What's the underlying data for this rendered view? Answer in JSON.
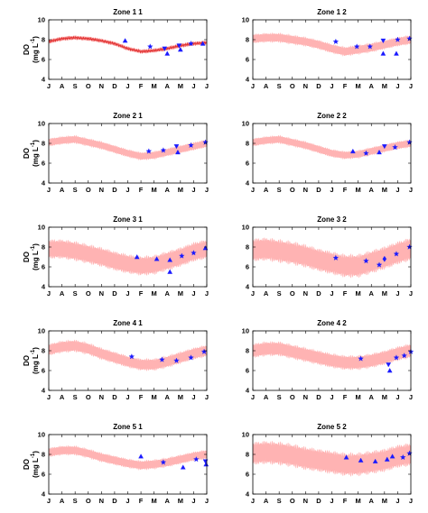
{
  "colors": {
    "band": "#ffb3b3",
    "modeled_line": "#e03030",
    "observed_marker": "#1a1aff",
    "observed_alt": "#f5a060",
    "axis": "#000000"
  },
  "shared": {
    "ylabel_line1": "DO",
    "ylabel_line2": "(mg L",
    "ylabel_sup": "-1",
    "ylabel_close": ")",
    "yticks": [
      "4",
      "6",
      "8",
      "10"
    ],
    "xticks": [
      "J",
      "A",
      "S",
      "O",
      "N",
      "D",
      "J",
      "F",
      "M",
      "A",
      "M",
      "J",
      "J"
    ]
  },
  "chart_data": [
    {
      "type": "area",
      "title": "Zone 1 1",
      "xlabel": "",
      "ylabel": "DO (mg L-1)",
      "ylim": [
        4,
        10
      ],
      "band_mean": [
        7.8,
        8.1,
        8.2,
        8.1,
        7.9,
        7.6,
        7.1,
        6.8,
        6.9,
        7.1,
        7.4,
        7.6,
        7.7
      ],
      "band_halfwidth": 0.15,
      "modeled_line_visible": true,
      "observed": [
        {
          "x": 5.8,
          "y": 7.9,
          "marker": "^"
        },
        {
          "x": 7.7,
          "y": 7.3,
          "marker": "*"
        },
        {
          "x": 8.8,
          "y": 7.1,
          "marker": "v"
        },
        {
          "x": 9.0,
          "y": 6.6,
          "marker": "^"
        },
        {
          "x": 9.9,
          "y": 7.4,
          "marker": "v"
        },
        {
          "x": 10.0,
          "y": 7.0,
          "marker": "^"
        },
        {
          "x": 10.8,
          "y": 7.6,
          "marker": "*"
        },
        {
          "x": 11.7,
          "y": 7.6,
          "marker": "^"
        }
      ]
    },
    {
      "type": "area",
      "title": "Zone 1 2",
      "xlabel": "",
      "ylabel": "",
      "ylim": [
        4,
        10
      ],
      "band_mean": [
        8.1,
        8.2,
        8.2,
        8.0,
        7.8,
        7.5,
        7.1,
        6.8,
        7.0,
        7.2,
        7.5,
        7.8,
        8.0
      ],
      "band_halfwidth": 0.35,
      "modeled_line_visible": false,
      "observed": [
        {
          "x": 6.3,
          "y": 7.8,
          "marker": "*"
        },
        {
          "x": 7.9,
          "y": 7.3,
          "marker": "*"
        },
        {
          "x": 8.9,
          "y": 7.3,
          "marker": "*"
        },
        {
          "x": 9.9,
          "y": 7.9,
          "marker": "v"
        },
        {
          "x": 9.9,
          "y": 6.6,
          "marker": "^"
        },
        {
          "x": 10.9,
          "y": 6.6,
          "marker": "^"
        },
        {
          "x": 11.0,
          "y": 8.0,
          "marker": "*"
        },
        {
          "x": 11.9,
          "y": 8.1,
          "marker": "*"
        }
      ]
    },
    {
      "type": "area",
      "title": "Zone 2 1",
      "xlabel": "",
      "ylabel": "DO (mg L-1)",
      "ylim": [
        4,
        10
      ],
      "band_mean": [
        8.1,
        8.3,
        8.4,
        8.1,
        7.8,
        7.4,
        7.0,
        6.7,
        6.8,
        7.1,
        7.4,
        7.7,
        8.0
      ],
      "band_halfwidth": 0.3,
      "modeled_line_visible": false,
      "observed": [
        {
          "x": 7.6,
          "y": 7.2,
          "marker": "*"
        },
        {
          "x": 8.7,
          "y": 7.3,
          "marker": "*"
        },
        {
          "x": 9.7,
          "y": 7.7,
          "marker": "v"
        },
        {
          "x": 9.8,
          "y": 7.1,
          "marker": "^"
        },
        {
          "x": 10.8,
          "y": 7.8,
          "marker": "*"
        },
        {
          "x": 11.9,
          "y": 8.1,
          "marker": "*"
        }
      ]
    },
    {
      "type": "area",
      "title": "Zone 2 2",
      "xlabel": "",
      "ylabel": "",
      "ylim": [
        4,
        10
      ],
      "band_mean": [
        8.1,
        8.3,
        8.4,
        8.1,
        7.8,
        7.4,
        7.0,
        6.8,
        6.9,
        7.2,
        7.5,
        7.8,
        8.0
      ],
      "band_halfwidth": 0.3,
      "modeled_line_visible": false,
      "observed": [
        {
          "x": 7.6,
          "y": 7.2,
          "marker": "^"
        },
        {
          "x": 8.6,
          "y": 7.0,
          "marker": "*"
        },
        {
          "x": 9.6,
          "y": 7.1,
          "marker": "^"
        },
        {
          "x": 10.0,
          "y": 7.7,
          "marker": "v"
        },
        {
          "x": 10.8,
          "y": 7.6,
          "marker": "*"
        },
        {
          "x": 11.9,
          "y": 8.1,
          "marker": "*"
        }
      ]
    },
    {
      "type": "area",
      "title": "Zone 3 1",
      "xlabel": "",
      "ylabel": "DO (mg L-1)",
      "ylim": [
        4,
        10
      ],
      "band_mean": [
        7.8,
        7.8,
        7.6,
        7.3,
        7.0,
        6.6,
        6.3,
        6.1,
        6.2,
        6.6,
        7.0,
        7.5,
        7.8
      ],
      "band_halfwidth": 0.75,
      "modeled_line_visible": false,
      "observed": [
        {
          "x": 6.7,
          "y": 7.0,
          "marker": "^"
        },
        {
          "x": 8.2,
          "y": 6.8,
          "marker": "^"
        },
        {
          "x": 9.2,
          "y": 6.7,
          "marker": "^"
        },
        {
          "x": 9.2,
          "y": 5.5,
          "marker": "^"
        },
        {
          "x": 10.1,
          "y": 7.1,
          "marker": "*"
        },
        {
          "x": 11.0,
          "y": 7.4,
          "marker": "*"
        },
        {
          "x": 11.9,
          "y": 7.9,
          "marker": "^"
        }
      ]
    },
    {
      "type": "area",
      "title": "Zone 3 2",
      "xlabel": "",
      "ylabel": "",
      "ylim": [
        4,
        10
      ],
      "band_mean": [
        7.7,
        7.8,
        7.6,
        7.4,
        7.1,
        6.7,
        6.4,
        6.1,
        6.1,
        6.5,
        6.9,
        7.4,
        7.8
      ],
      "band_halfwidth": 0.9,
      "modeled_line_visible": false,
      "observed": [
        {
          "x": 6.3,
          "y": 6.9,
          "marker": "*"
        },
        {
          "x": 8.6,
          "y": 6.6,
          "marker": "*"
        },
        {
          "x": 9.6,
          "y": 6.2,
          "marker": "*"
        },
        {
          "x": 10.0,
          "y": 6.8,
          "marker": "d"
        },
        {
          "x": 10.9,
          "y": 7.3,
          "marker": "*"
        },
        {
          "x": 11.9,
          "y": 8.0,
          "marker": "*"
        }
      ]
    },
    {
      "type": "area",
      "title": "Zone 4 1",
      "xlabel": "",
      "ylabel": "DO (mg L-1)",
      "ylim": [
        4,
        10
      ],
      "band_mean": [
        8.1,
        8.4,
        8.5,
        8.2,
        7.7,
        7.3,
        6.9,
        6.6,
        6.6,
        6.9,
        7.3,
        7.7,
        8.0
      ],
      "band_halfwidth": 0.45,
      "modeled_line_visible": false,
      "observed": [
        {
          "x": 6.3,
          "y": 7.4,
          "marker": "*"
        },
        {
          "x": 8.6,
          "y": 7.1,
          "marker": "*"
        },
        {
          "x": 9.7,
          "y": 7.0,
          "marker": "*"
        },
        {
          "x": 10.8,
          "y": 7.3,
          "marker": "*"
        },
        {
          "x": 11.8,
          "y": 7.9,
          "marker": "*"
        }
      ]
    },
    {
      "type": "area",
      "title": "Zone 4 2",
      "xlabel": "",
      "ylabel": "",
      "ylim": [
        4,
        10
      ],
      "band_mean": [
        8.0,
        8.2,
        8.2,
        7.9,
        7.6,
        7.3,
        7.0,
        6.8,
        6.8,
        7.0,
        7.3,
        7.7,
        8.0
      ],
      "band_halfwidth": 0.55,
      "modeled_line_visible": false,
      "observed": [
        {
          "x": 8.2,
          "y": 7.2,
          "marker": "*"
        },
        {
          "x": 10.3,
          "y": 6.6,
          "marker": "v"
        },
        {
          "x": 10.4,
          "y": 6.0,
          "marker": "^"
        },
        {
          "x": 10.9,
          "y": 7.3,
          "marker": "*"
        },
        {
          "x": 11.5,
          "y": 7.5,
          "marker": "*"
        },
        {
          "x": 12.0,
          "y": 7.9,
          "marker": "*"
        }
      ]
    },
    {
      "type": "area",
      "title": "Zone 5 1",
      "xlabel": "",
      "ylabel": "DO (mg L-1)",
      "ylim": [
        4,
        10
      ],
      "band_mean": [
        8.2,
        8.4,
        8.4,
        8.1,
        7.7,
        7.4,
        7.1,
        6.9,
        7.0,
        7.2,
        7.5,
        7.8,
        8.0
      ],
      "band_halfwidth": 0.35,
      "modeled_line_visible": false,
      "observed": [
        {
          "x": 7.0,
          "y": 7.8,
          "marker": "^"
        },
        {
          "x": 8.7,
          "y": 7.2,
          "marker": "*"
        },
        {
          "x": 10.2,
          "y": 6.7,
          "marker": "^"
        },
        {
          "x": 11.2,
          "y": 7.5,
          "marker": "*"
        },
        {
          "x": 11.9,
          "y": 7.3,
          "marker": "v"
        },
        {
          "x": 11.95,
          "y": 7.0,
          "marker": "^"
        }
      ]
    },
    {
      "type": "area",
      "title": "Zone 5 2",
      "xlabel": "",
      "ylabel": "",
      "ylim": [
        4,
        10
      ],
      "band_mean": [
        8.1,
        8.2,
        8.1,
        7.9,
        7.6,
        7.4,
        7.2,
        7.0,
        7.0,
        7.2,
        7.4,
        7.8,
        8.0
      ],
      "band_halfwidth": 0.9,
      "modeled_line_visible": false,
      "observed": [
        {
          "x": 7.1,
          "y": 7.7,
          "marker": "^"
        },
        {
          "x": 8.2,
          "y": 7.4,
          "marker": "^"
        },
        {
          "x": 9.3,
          "y": 7.3,
          "marker": "^"
        },
        {
          "x": 10.2,
          "y": 7.5,
          "marker": "^"
        },
        {
          "x": 10.6,
          "y": 7.8,
          "marker": "^"
        },
        {
          "x": 11.4,
          "y": 7.7,
          "marker": "*"
        },
        {
          "x": 11.9,
          "y": 8.1,
          "marker": "*"
        }
      ]
    }
  ]
}
